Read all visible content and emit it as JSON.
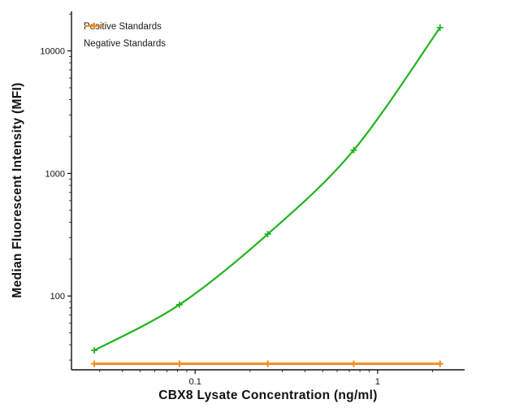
{
  "chart_data": {
    "type": "line",
    "title": "",
    "xlabel": "CBX8 Lysate Concentration (ng/ml)",
    "ylabel": "Median Fluorescent Intensity (MFI)",
    "x_scale": "log",
    "y_scale": "log",
    "x_range": [
      0.021,
      3.0
    ],
    "y_range": [
      25,
      21000
    ],
    "x_ticks": [
      0.1,
      1
    ],
    "y_ticks": [
      100,
      1000,
      10000
    ],
    "grid": false,
    "legend_position": "top-left",
    "series": [
      {
        "name": "Positive Standards",
        "color": "#1fb41f",
        "marker": "plus",
        "line_style": "smooth",
        "x": [
          0.028,
          0.082,
          0.25,
          0.74,
          2.2
        ],
        "y": [
          36,
          85,
          320,
          1550,
          15500
        ]
      },
      {
        "name": "Negative Standards",
        "color": "#f28c1e",
        "marker": "plus",
        "line_style": "straight",
        "x": [
          0.028,
          0.082,
          0.25,
          0.74,
          2.2
        ],
        "y": [
          28,
          28,
          28,
          28,
          28
        ]
      }
    ]
  }
}
